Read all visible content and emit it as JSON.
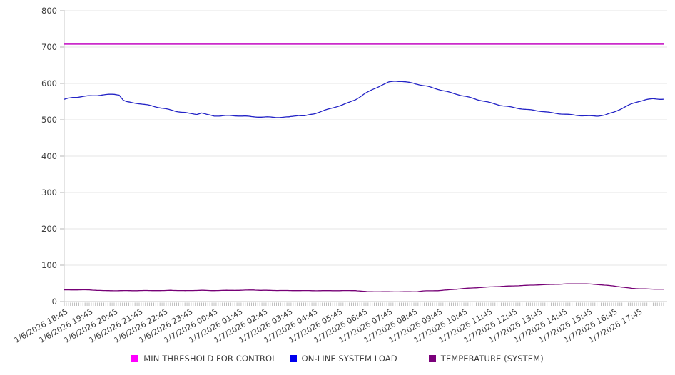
{
  "chart_data": {
    "type": "line",
    "title": "",
    "xlabel": "",
    "ylabel": "",
    "ylim": [
      0,
      800
    ],
    "y_tick_step": 100,
    "y_tick_labels": [
      "0",
      "100",
      "200",
      "300",
      "400",
      "500",
      "600",
      "700",
      "800"
    ],
    "x_tick_labels": [
      "1/6/2026 18:45",
      "1/6/2026 19:45",
      "1/6/2026 20:45",
      "1/6/2026 21:45",
      "1/6/2026 22:45",
      "1/6/2026 23:45",
      "1/7/2026 00:45",
      "1/7/2026 01:45",
      "1/7/2026 02:45",
      "1/7/2026 03:45",
      "1/7/2026 04:45",
      "1/7/2026 05:45",
      "1/7/2026 06:45",
      "1/7/2026 07:45",
      "1/7/2026 08:45",
      "1/7/2026 09:45",
      "1/7/2026 10:45",
      "1/7/2026 11:45",
      "1/7/2026 12:45",
      "1/7/2026 13:45",
      "1/7/2026 14:45",
      "1/7/2026 15:45",
      "1/7/2026 16:45",
      "1/7/2026 17:45"
    ],
    "minor_tick_minutes": 5,
    "grid": "horizontal",
    "legend_position": "bottom",
    "style": {
      "grid_color": "#e6e6e6",
      "axis_color": "#c8c8c8",
      "tick_color": "#b5b5b5",
      "text_color": "#3d3d3d"
    },
    "series": [
      {
        "name": "MIN THRESHOLD FOR CONTROL",
        "color": "#cb2bcb",
        "swatch_color": "#ff00ff",
        "width": 1.8,
        "wiggle": 0,
        "values": [
          708,
          708,
          708,
          708,
          708,
          708,
          708,
          708,
          708,
          708,
          708,
          708,
          708,
          708,
          708,
          708,
          708,
          708,
          708,
          708,
          708,
          708,
          708,
          708
        ],
        "points": [
          [
            0,
            708
          ],
          [
            1440,
            708
          ]
        ]
      },
      {
        "name": "ON-LINE SYSTEM LOAD",
        "color": "#2323c6",
        "swatch_color": "#0000ee",
        "width": 1.3,
        "wiggle": 1.4,
        "values": [
          556,
          566,
          570,
          545,
          531,
          517,
          511,
          511,
          507,
          508,
          516,
          538,
          571,
          603,
          600,
          584,
          565,
          548,
          534,
          524,
          516,
          511,
          520,
          551
        ],
        "points": [
          [
            0,
            556
          ],
          [
            20,
            562
          ],
          [
            60,
            566
          ],
          [
            95,
            568
          ],
          [
            120,
            570
          ],
          [
            132,
            568
          ],
          [
            142,
            553
          ],
          [
            150,
            549
          ],
          [
            180,
            545
          ],
          [
            210,
            539
          ],
          [
            240,
            531
          ],
          [
            270,
            523
          ],
          [
            300,
            517
          ],
          [
            318,
            515
          ],
          [
            330,
            519
          ],
          [
            344,
            514
          ],
          [
            360,
            511
          ],
          [
            390,
            512
          ],
          [
            420,
            511
          ],
          [
            450,
            508
          ],
          [
            480,
            507
          ],
          [
            510,
            507
          ],
          [
            540,
            508
          ],
          [
            562,
            513
          ],
          [
            578,
            511
          ],
          [
            600,
            516
          ],
          [
            620,
            524
          ],
          [
            640,
            530
          ],
          [
            660,
            538
          ],
          [
            685,
            548
          ],
          [
            700,
            556
          ],
          [
            720,
            571
          ],
          [
            740,
            583
          ],
          [
            762,
            595
          ],
          [
            780,
            603
          ],
          [
            795,
            606
          ],
          [
            812,
            605
          ],
          [
            840,
            600
          ],
          [
            870,
            593
          ],
          [
            900,
            584
          ],
          [
            930,
            574
          ],
          [
            960,
            565
          ],
          [
            990,
            556
          ],
          [
            1020,
            548
          ],
          [
            1050,
            540
          ],
          [
            1080,
            534
          ],
          [
            1110,
            528
          ],
          [
            1140,
            524
          ],
          [
            1170,
            519
          ],
          [
            1200,
            516
          ],
          [
            1230,
            513
          ],
          [
            1255,
            511
          ],
          [
            1280,
            510
          ],
          [
            1300,
            513
          ],
          [
            1320,
            520
          ],
          [
            1336,
            529
          ],
          [
            1352,
            538
          ],
          [
            1368,
            546
          ],
          [
            1380,
            551
          ],
          [
            1398,
            556
          ],
          [
            1415,
            558
          ],
          [
            1440,
            557
          ]
        ]
      },
      {
        "name": "TEMPERATURE (SYSTEM)",
        "color": "#760076",
        "swatch_color": "#7a007a",
        "width": 1.3,
        "wiggle": 0.35,
        "values": [
          32,
          32,
          30,
          30,
          30,
          31,
          31,
          31,
          31,
          30,
          30,
          30,
          30,
          27,
          27,
          30,
          36,
          40,
          43,
          46,
          48,
          49,
          43,
          35
        ],
        "points": [
          [
            0,
            32
          ],
          [
            60,
            32
          ],
          [
            78,
            31
          ],
          [
            95,
            30
          ],
          [
            240,
            30
          ],
          [
            256,
            31
          ],
          [
            290,
            30
          ],
          [
            330,
            31
          ],
          [
            350,
            30
          ],
          [
            420,
            31
          ],
          [
            455,
            32
          ],
          [
            470,
            31
          ],
          [
            540,
            30
          ],
          [
            650,
            30
          ],
          [
            700,
            30
          ],
          [
            728,
            27
          ],
          [
            845,
            27
          ],
          [
            862,
            29
          ],
          [
            900,
            30
          ],
          [
            922,
            32
          ],
          [
            960,
            36
          ],
          [
            1020,
            40
          ],
          [
            1080,
            43
          ],
          [
            1140,
            46
          ],
          [
            1200,
            48
          ],
          [
            1235,
            49
          ],
          [
            1268,
            48
          ],
          [
            1290,
            46
          ],
          [
            1320,
            43
          ],
          [
            1345,
            39
          ],
          [
            1365,
            36
          ],
          [
            1385,
            35
          ],
          [
            1410,
            34
          ],
          [
            1440,
            34
          ]
        ]
      }
    ],
    "legend": [
      {
        "label": "MIN THRESHOLD FOR CONTROL"
      },
      {
        "label": "ON-LINE SYSTEM LOAD"
      },
      {
        "label": "TEMPERATURE (SYSTEM)"
      }
    ]
  }
}
